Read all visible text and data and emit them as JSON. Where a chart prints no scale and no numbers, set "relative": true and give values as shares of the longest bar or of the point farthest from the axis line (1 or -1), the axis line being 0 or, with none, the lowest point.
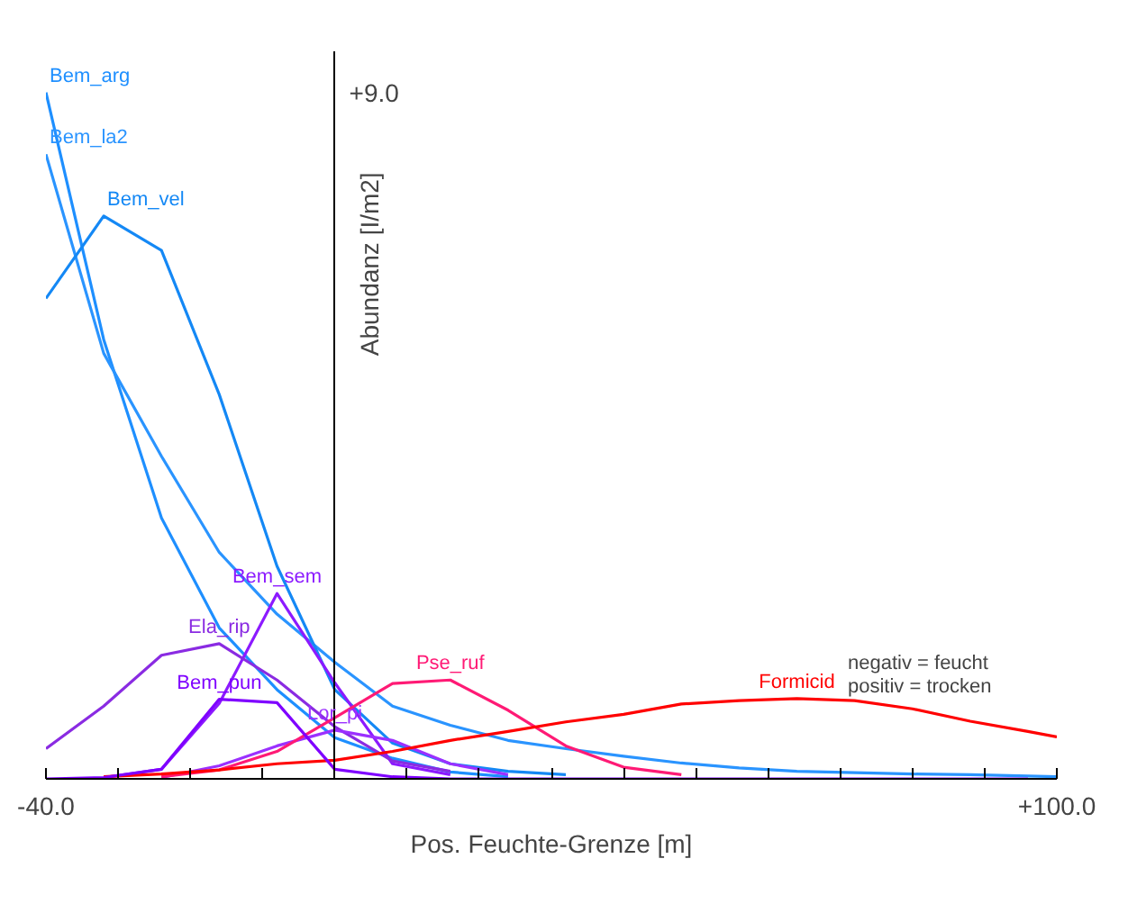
{
  "chart_data": {
    "type": "line",
    "relative": true,
    "xlabel": "Pos. Feuchte-Grenze [m]",
    "ylabel": "Abundanz [I/m2]",
    "x": [
      -40,
      -32,
      -24,
      -16,
      -8,
      0,
      8,
      16,
      24,
      32,
      40,
      48,
      56,
      64,
      72,
      80,
      88,
      96,
      100
    ],
    "series": [
      {
        "name": "Bem_arg",
        "color": "#1e8fff",
        "values": [
          1.0,
          0.64,
          0.38,
          0.22,
          0.13,
          0.06,
          0.03,
          0.01,
          0.003,
          null,
          null,
          null,
          null,
          null,
          null,
          null,
          null,
          null,
          null
        ]
      },
      {
        "name": "Bem_la2",
        "color": "#2a94ff",
        "values": [
          0.91,
          0.62,
          0.47,
          0.33,
          0.24,
          0.17,
          0.106,
          0.078,
          0.056,
          0.044,
          0.033,
          0.023,
          0.016,
          0.011,
          0.009,
          0.007,
          0.006,
          0.004,
          0.003
        ]
      },
      {
        "name": "Bem_vel",
        "color": "#1488f5",
        "values": [
          0.7,
          0.82,
          0.77,
          0.56,
          0.31,
          0.13,
          0.052,
          0.022,
          0.011,
          0.006,
          null,
          null,
          null,
          null,
          null,
          null,
          null,
          null,
          null
        ]
      },
      {
        "name": "Bem_sem",
        "color": "#8c1aff",
        "values": [
          null,
          0.002,
          0.014,
          0.11,
          0.27,
          0.14,
          0.022,
          0.006,
          null,
          null,
          null,
          null,
          null,
          null,
          null,
          null,
          null,
          null,
          null
        ]
      },
      {
        "name": "Ela_rip",
        "color": "#8a2be2",
        "values": [
          0.044,
          0.106,
          0.18,
          0.197,
          0.144,
          0.076,
          0.026,
          0.011,
          null,
          null,
          null,
          null,
          null,
          null,
          null,
          null,
          null,
          null,
          null
        ]
      },
      {
        "name": "Lor_pi",
        "color": "#9b30ff",
        "values": [
          null,
          null,
          0.002,
          0.019,
          0.048,
          0.071,
          0.056,
          0.022,
          0.006,
          null,
          null,
          null,
          null,
          null,
          null,
          null,
          null,
          null,
          null
        ]
      },
      {
        "name": "Pse_ruf",
        "color": "#ff1a75",
        "values": [
          null,
          null,
          0.003,
          0.013,
          0.04,
          0.089,
          0.139,
          0.144,
          0.1,
          0.048,
          0.017,
          0.006,
          null,
          null,
          null,
          null,
          null,
          null,
          null
        ]
      },
      {
        "name": "Formicid",
        "color": "#ff0000",
        "values": [
          null,
          0.003,
          0.007,
          0.013,
          0.022,
          0.027,
          0.04,
          0.056,
          0.069,
          0.083,
          0.094,
          0.109,
          0.114,
          0.117,
          0.114,
          0.102,
          0.084,
          0.069,
          0.061
        ]
      },
      {
        "name": "Bem_pun",
        "color": "#7f00ff",
        "values": [
          0,
          0.002,
          0.014,
          0.116,
          0.111,
          0.014,
          0.003,
          0,
          0,
          0,
          0,
          0,
          0,
          0,
          0,
          0,
          0,
          0,
          null
        ]
      }
    ],
    "xlim": [
      -40,
      100
    ],
    "xticks": [
      {
        "value": -40,
        "label": "-40.0"
      },
      {
        "value": -30,
        "label": null
      },
      {
        "value": -20,
        "label": null
      },
      {
        "value": -10,
        "label": null
      },
      {
        "value": 10,
        "label": null
      },
      {
        "value": 20,
        "label": null
      },
      {
        "value": 30,
        "label": null
      },
      {
        "value": 40,
        "label": null
      },
      {
        "value": 50,
        "label": null
      },
      {
        "value": 60,
        "label": null
      },
      {
        "value": 70,
        "label": null
      },
      {
        "value": 80,
        "label": null
      },
      {
        "value": 90,
        "label": null
      },
      {
        "value": 100,
        "label": "+100.0"
      }
    ],
    "annotations": [
      "+9.0",
      "negativ = feucht",
      "positiv  = trocken"
    ],
    "grid": false,
    "marker": "none",
    "line_style": "solid"
  }
}
